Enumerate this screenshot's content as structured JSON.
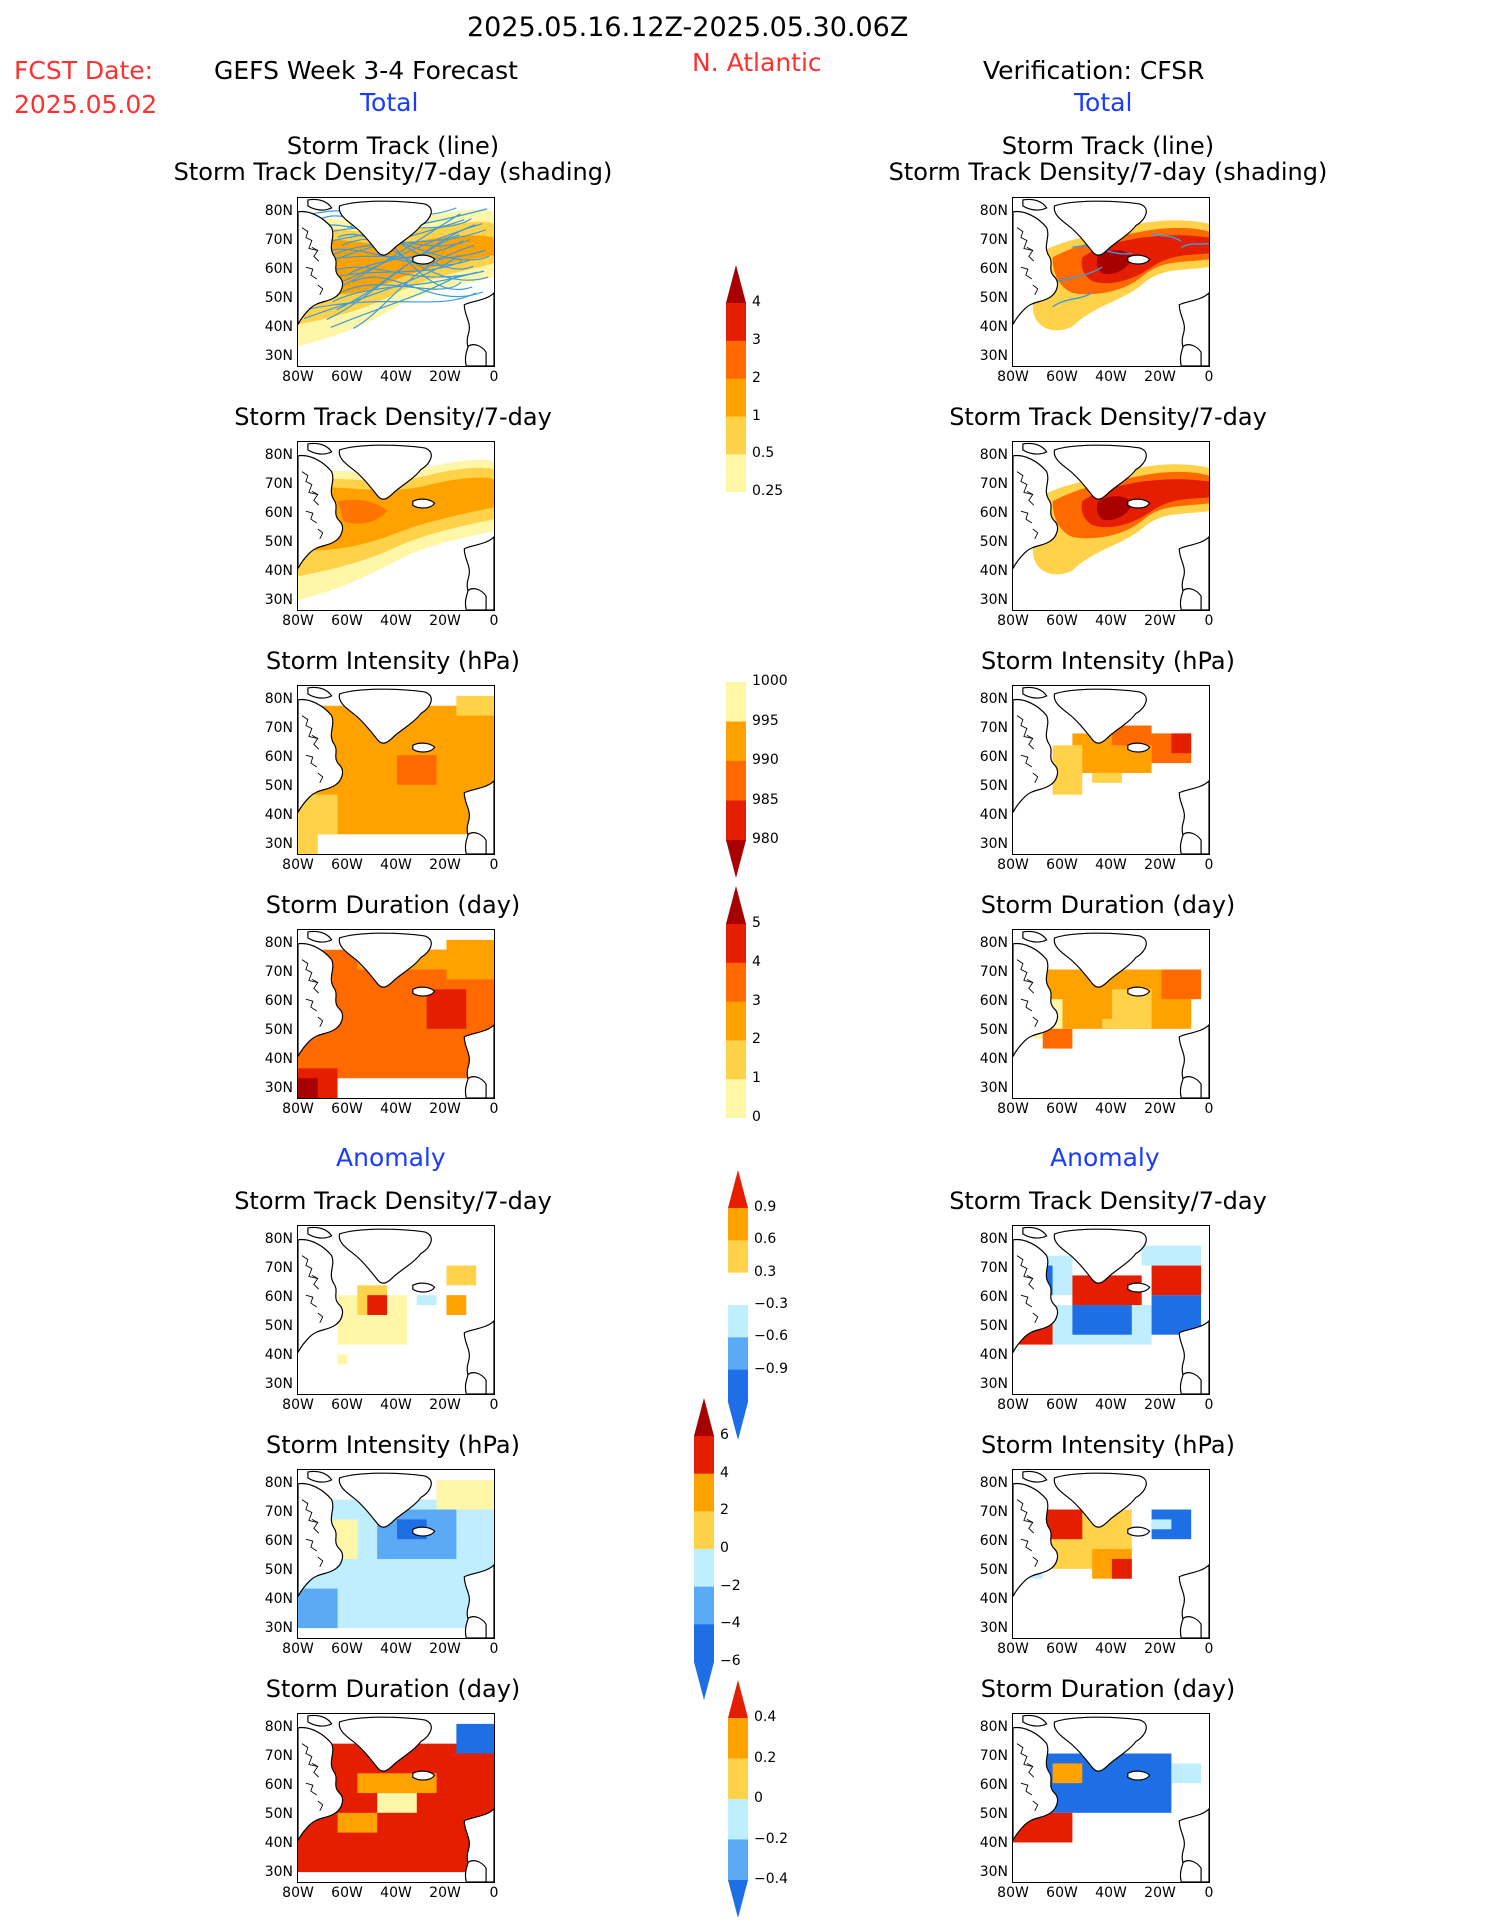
{
  "header": {
    "period": "2025.05.16.12Z-2025.05.30.06Z",
    "fcst_label": "FCST Date:",
    "fcst_date": "2025.05.02",
    "forecast_title": "GEFS Week 3-4 Forecast",
    "region": "N. Atlantic",
    "verification_title": "Verification: CFSR",
    "total_left": "Total",
    "total_right": "Total",
    "anomaly_left": "Anomaly",
    "anomaly_right": "Anomaly"
  },
  "panels": {
    "track_title_1": "Storm Track (line)",
    "track_title_2": "Storm Track Density/7-day (shading)",
    "density": "Storm Track Density/7-day",
    "intensity": "Storm Intensity (hPa)",
    "duration": "Storm Duration (day)"
  },
  "axes": {
    "lat_ticks": [
      "80N",
      "70N",
      "60N",
      "50N",
      "40N",
      "30N"
    ],
    "lon_ticks": [
      "80W",
      "60W",
      "40W",
      "20W",
      "0"
    ]
  },
  "colorbars": {
    "density_total": [
      "4",
      "3",
      "2",
      "1",
      "0.5",
      "0.25"
    ],
    "intensity_total": [
      "1000",
      "995",
      "990",
      "985",
      "980"
    ],
    "duration_total": [
      "5",
      "4",
      "3",
      "2",
      "1",
      "0"
    ],
    "density_anom": [
      "0.9",
      "0.6",
      "0.3",
      "−0.3",
      "−0.6",
      "−0.9"
    ],
    "intensity_anom": [
      "6",
      "4",
      "2",
      "0",
      "−2",
      "−4",
      "−6"
    ],
    "duration_anom": [
      "0.4",
      "0.2",
      "0",
      "−0.2",
      "−0.4"
    ]
  },
  "colors": {
    "pale_yellow": "#fff6a8",
    "light_orange": "#ffd24a",
    "orange": "#ffa200",
    "dark_orange": "#ff6a00",
    "red": "#e61e00",
    "dark_red": "#a80000",
    "light_blue": "#bfefff",
    "mid_blue": "#5aaaf5",
    "blue": "#1e6ee6",
    "track_line": "#3a9ce0"
  }
}
